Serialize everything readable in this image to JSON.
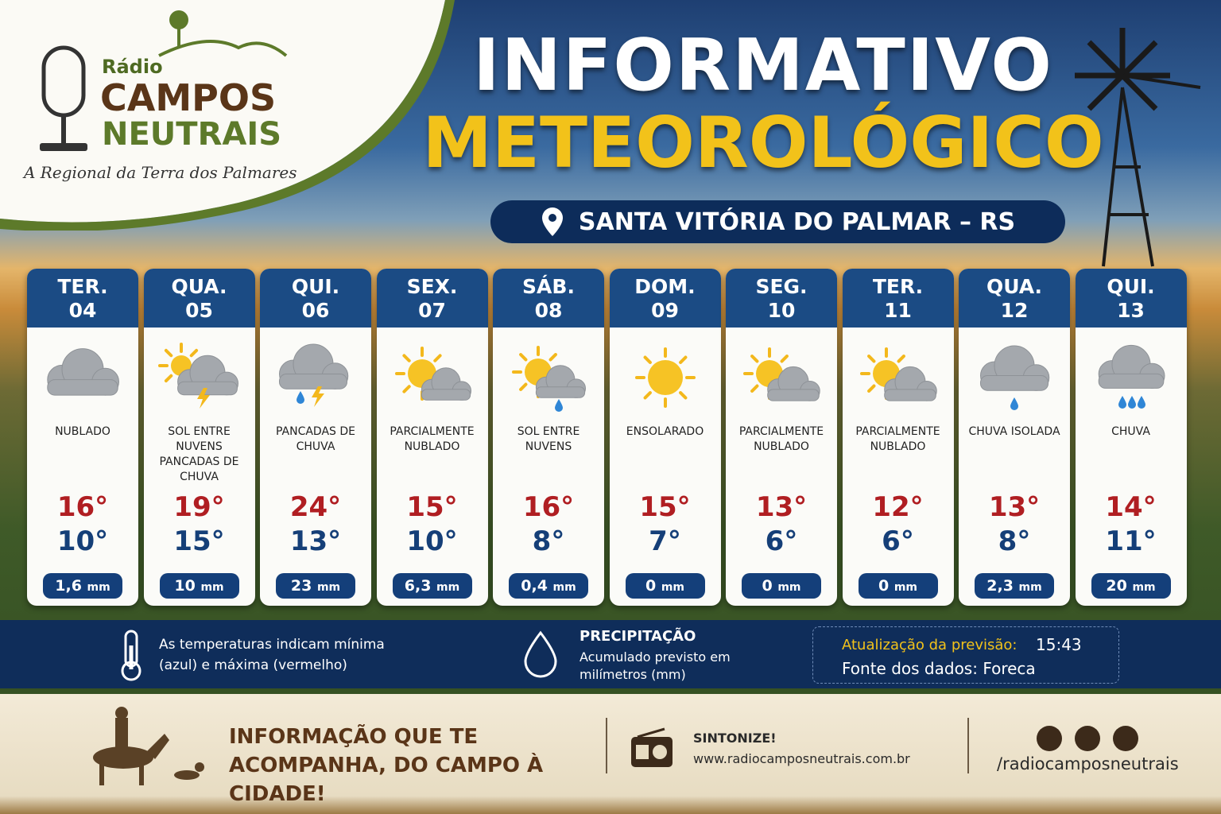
{
  "logo": {
    "small": "Rádio",
    "name1": "CAMPOS",
    "name2": "NEUTRAIS",
    "tagline": "A Regional da Terra dos Palmares"
  },
  "header": {
    "title1": "INFORMATIVO",
    "title2": "METEOROLÓGICO",
    "location": "SANTA VITÓRIA DO PALMAR – RS"
  },
  "precip_unit": "mm",
  "days": [
    {
      "day": "TER.",
      "date": "04",
      "condition": "NUBLADO",
      "max": "16°",
      "min": "10°",
      "precip": "1,6"
    },
    {
      "day": "QUA.",
      "date": "05",
      "condition": "SOL ENTRE NUVENS PANCADAS DE CHUVA",
      "max": "19°",
      "min": "15°",
      "precip": "10"
    },
    {
      "day": "QUI.",
      "date": "06",
      "condition": "PANCADAS DE CHUVA",
      "max": "24°",
      "min": "13°",
      "precip": "23"
    },
    {
      "day": "SEX.",
      "date": "07",
      "condition": "PARCIALMENTE NUBLADO",
      "max": "15°",
      "min": "10°",
      "precip": "6,3"
    },
    {
      "day": "SÁB.",
      "date": "08",
      "condition": "SOL ENTRE NUVENS",
      "max": "16°",
      "min": "8°",
      "precip": "0,4"
    },
    {
      "day": "DOM.",
      "date": "09",
      "condition": "ENSOLARADO",
      "max": "15°",
      "min": "7°",
      "precip": "0"
    },
    {
      "day": "SEG.",
      "date": "10",
      "condition": "PARCIALMENTE NUBLADO",
      "max": "13°",
      "min": "6°",
      "precip": "0"
    },
    {
      "day": "TER.",
      "date": "11",
      "condition": "PARCIALMENTE NUBLADO",
      "max": "12°",
      "min": "6°",
      "precip": "0"
    },
    {
      "day": "QUA.",
      "date": "12",
      "condition": "CHUVA ISOLADA",
      "max": "13°",
      "min": "8°",
      "precip": "2,3"
    },
    {
      "day": "QUI.",
      "date": "13",
      "condition": "CHUVA",
      "max": "14°",
      "min": "11°",
      "precip": "20"
    }
  ],
  "legend": {
    "temp_note": "As temperaturas indicam mínima (azul) e máxima (vermelho)",
    "precip_title": "PRECIPITAÇÃO",
    "precip_note": "Acumulado previsto em milímetros (mm)",
    "update_label": "Atualização da previsão:",
    "update_time": "15:43",
    "source": "Fonte dos dados: Foreca"
  },
  "footer": {
    "slogan": "INFORMAÇÃO QUE TE ACOMPANHA, DO CAMPO À CIDADE!",
    "tune": "SINTONIZE!",
    "site": "www.radiocamposneutrais.com.br",
    "social": "/radiocamposneutrais"
  }
}
